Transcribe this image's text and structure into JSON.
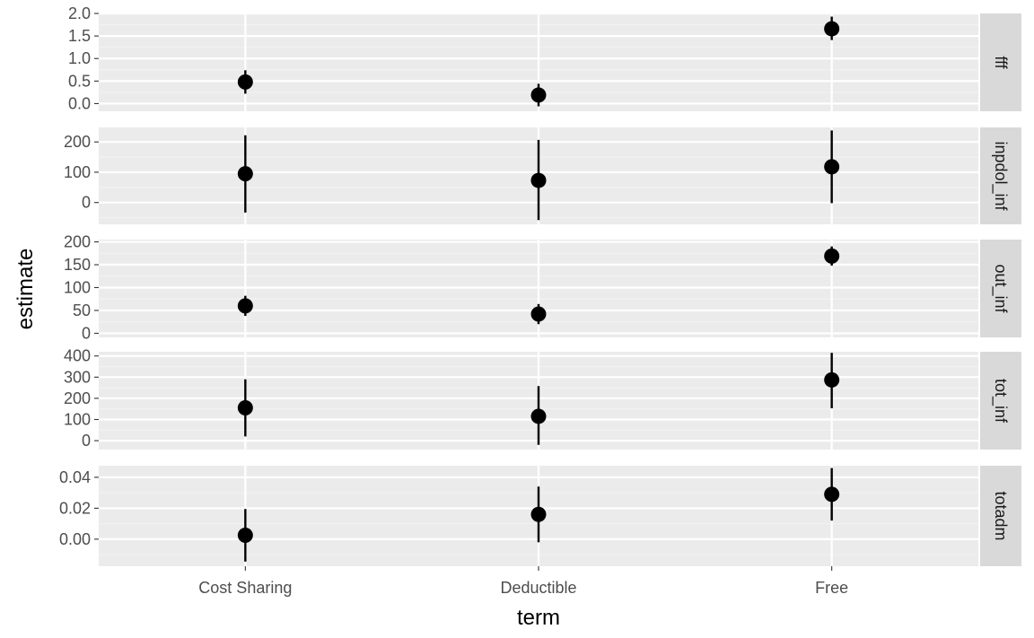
{
  "chart_data": {
    "type": "scatter",
    "subtype": "pointrange-faceted",
    "xlabel": "term",
    "ylabel": "estimate",
    "categories": [
      "Cost Sharing",
      "Deductible",
      "Free"
    ],
    "facet_strip_position": "right",
    "grid": true,
    "facets": [
      {
        "label": "fff",
        "ylim": [
          -0.17,
          2.0
        ],
        "yticks": [
          0.0,
          0.5,
          1.0,
          1.5,
          2.0
        ],
        "ytick_labels": [
          "0.0",
          "0.5",
          "1.0",
          "1.5",
          "2.0"
        ],
        "points": [
          {
            "term": "Cost Sharing",
            "estimate": 0.48,
            "low": 0.22,
            "high": 0.74
          },
          {
            "term": "Deductible",
            "estimate": 0.19,
            "low": -0.06,
            "high": 0.44
          },
          {
            "term": "Free",
            "estimate": 1.66,
            "low": 1.41,
            "high": 1.93
          }
        ]
      },
      {
        "label": "inpdol_inf",
        "ylim": [
          -72,
          248
        ],
        "yticks": [
          0,
          100,
          200
        ],
        "ytick_labels": [
          "0",
          "100",
          "200"
        ],
        "points": [
          {
            "term": "Cost Sharing",
            "estimate": 95,
            "low": -33,
            "high": 222
          },
          {
            "term": "Deductible",
            "estimate": 73,
            "low": -58,
            "high": 207
          },
          {
            "term": "Free",
            "estimate": 118,
            "low": -2,
            "high": 238
          }
        ]
      },
      {
        "label": "out_inf",
        "ylim": [
          -9,
          205
        ],
        "yticks": [
          0,
          50,
          100,
          150,
          200
        ],
        "ytick_labels": [
          "0",
          "50",
          "100",
          "150",
          "200"
        ],
        "points": [
          {
            "term": "Cost Sharing",
            "estimate": 60,
            "low": 38,
            "high": 82
          },
          {
            "term": "Deductible",
            "estimate": 42,
            "low": 20,
            "high": 64
          },
          {
            "term": "Free",
            "estimate": 169,
            "low": 148,
            "high": 190
          }
        ]
      },
      {
        "label": "tot_inf",
        "ylim": [
          -42,
          420
        ],
        "yticks": [
          0,
          100,
          200,
          300,
          400
        ],
        "ytick_labels": [
          "0",
          "100",
          "200",
          "300",
          "400"
        ],
        "points": [
          {
            "term": "Cost Sharing",
            "estimate": 155,
            "low": 20,
            "high": 290
          },
          {
            "term": "Deductible",
            "estimate": 115,
            "low": -20,
            "high": 258
          },
          {
            "term": "Free",
            "estimate": 287,
            "low": 153,
            "high": 415
          }
        ]
      },
      {
        "label": "totadm",
        "ylim": [
          -0.0175,
          0.0475
        ],
        "yticks": [
          0.0,
          0.02,
          0.04
        ],
        "ytick_labels": [
          "0.00",
          "0.02",
          "0.04"
        ],
        "points": [
          {
            "term": "Cost Sharing",
            "estimate": 0.0025,
            "low": -0.0145,
            "high": 0.0195
          },
          {
            "term": "Deductible",
            "estimate": 0.016,
            "low": -0.002,
            "high": 0.034
          },
          {
            "term": "Free",
            "estimate": 0.029,
            "low": 0.012,
            "high": 0.046
          }
        ]
      }
    ]
  },
  "colors": {
    "panel_background": "#ebebeb",
    "grid_major": "#ffffff",
    "grid_minor": "#f2f2f2",
    "strip_background": "#d9d9d9",
    "point": "#000000",
    "tick_text": "#4d4d4d"
  }
}
